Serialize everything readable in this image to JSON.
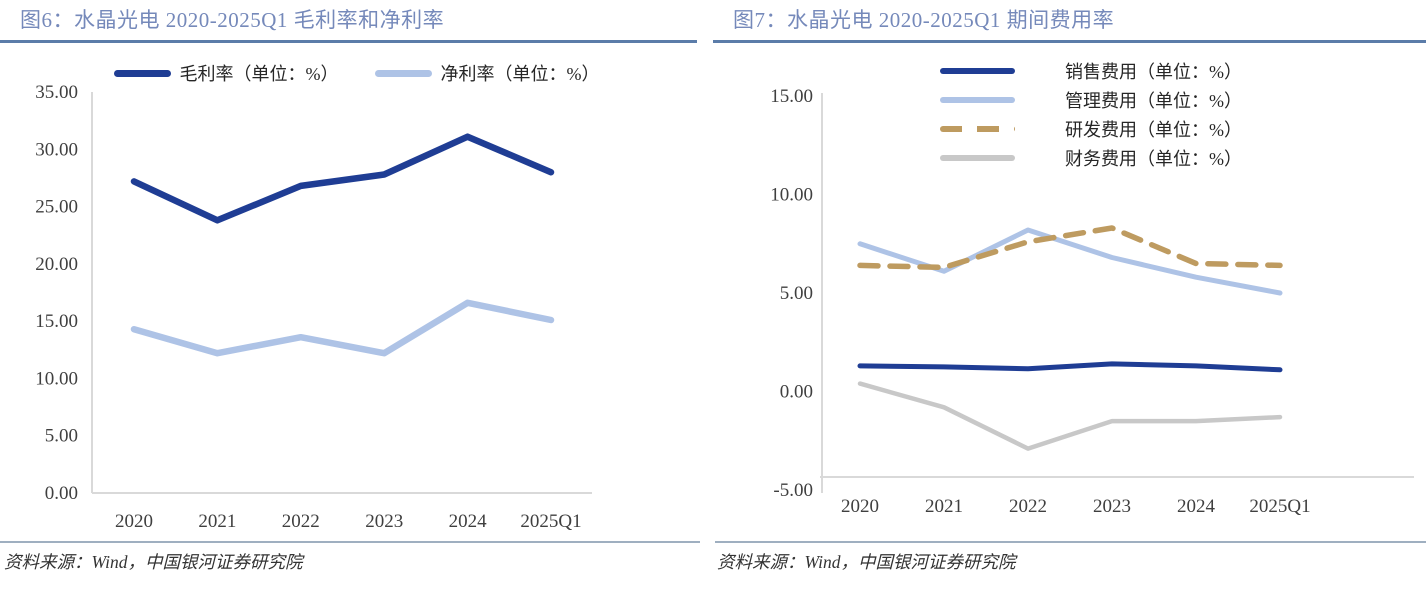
{
  "panels": [
    {
      "title": "图6：水晶光电 2020-2025Q1 毛利率和净利率",
      "source_note": "资料来源：Wind，中国银河证券研究院"
    },
    {
      "title": "图7：水晶光电 2020-2025Q1 期间费用率",
      "source_note": "资料来源：Wind，中国银河证券研究院"
    }
  ],
  "colors": {
    "title_blue": "#7589ba",
    "rule_blue": "#5b7ca9",
    "navy": "#1f3d94",
    "light_blue": "#aec3e6",
    "tan": "#be9b60",
    "gray_line": "#c8c8c8",
    "axis_gray": "#d9d9d9",
    "tick_text": "#3f3f3f"
  },
  "chart_data": [
    {
      "type": "line",
      "title": "图6：水晶光电 2020-2025Q1 毛利率和净利率",
      "categories": [
        "2020",
        "2021",
        "2022",
        "2023",
        "2024",
        "2025Q1"
      ],
      "series": [
        {
          "name": "毛利率（单位：%）",
          "color": "#1f3d94",
          "style": "solid",
          "values": [
            27.2,
            23.8,
            26.8,
            27.8,
            31.1,
            28.0
          ]
        },
        {
          "name": "净利率（单位：%）",
          "color": "#aec3e6",
          "style": "solid",
          "values": [
            14.3,
            12.2,
            13.6,
            12.2,
            16.6,
            15.1
          ]
        }
      ],
      "ylim": [
        0,
        35
      ],
      "y_ticks": [
        "0.00",
        "5.00",
        "10.00",
        "15.00",
        "20.00",
        "25.00",
        "30.00",
        "35.00"
      ],
      "xlabel": "",
      "ylabel": "",
      "grid": false,
      "legend_position": "top-center"
    },
    {
      "type": "line",
      "title": "图7：水晶光电 2020-2025Q1 期间费用率",
      "categories": [
        "2020",
        "2021",
        "2022",
        "2023",
        "2024",
        "2025Q1"
      ],
      "series": [
        {
          "name": "销售费用（单位：%）",
          "color": "#1f3d94",
          "style": "solid",
          "values": [
            1.3,
            1.25,
            1.15,
            1.4,
            1.3,
            1.1
          ]
        },
        {
          "name": "管理费用（单位：%）",
          "color": "#aec3e6",
          "style": "solid",
          "values": [
            7.5,
            6.1,
            8.2,
            6.8,
            5.8,
            5.0
          ]
        },
        {
          "name": "研发费用（单位：%）",
          "color": "#be9b60",
          "style": "dashed",
          "values": [
            6.4,
            6.3,
            7.6,
            8.3,
            6.5,
            6.4
          ]
        },
        {
          "name": "财务费用（单位：%）",
          "color": "#c8c8c8",
          "style": "solid",
          "values": [
            0.4,
            -0.8,
            -2.9,
            -1.5,
            -1.5,
            -1.3
          ]
        }
      ],
      "ylim": [
        -5,
        15
      ],
      "y_ticks": [
        "-5.00",
        "0.00",
        "5.00",
        "10.00",
        "15.00"
      ],
      "xlabel": "",
      "ylabel": "",
      "grid": false,
      "legend_position": "top-right"
    }
  ]
}
